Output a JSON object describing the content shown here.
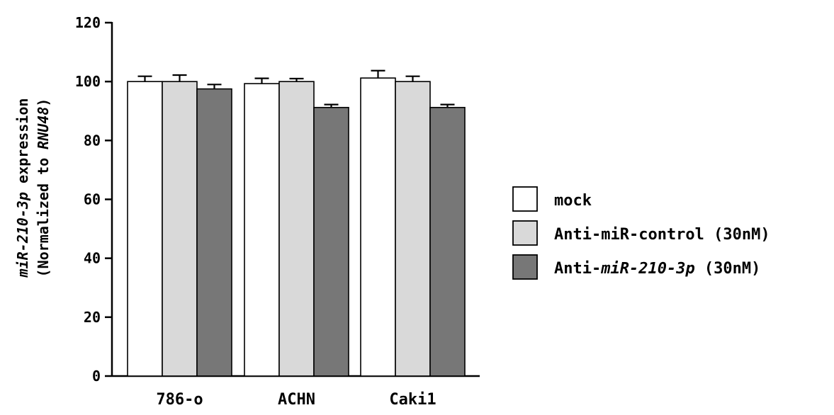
{
  "chart_data": {
    "type": "bar",
    "categories": [
      "786-o",
      "ACHN",
      "Caki1"
    ],
    "ylabel_line1_italic": "miR-210-3p",
    "ylabel_line1_rest": " expression",
    "ylabel_line2_prefix": "(Normalized to ",
    "ylabel_line2_italic": "RNU48",
    "ylabel_line2_suffix": ")",
    "ylim": [
      0,
      120
    ],
    "yticks": [
      0,
      20,
      40,
      60,
      80,
      100,
      120
    ],
    "series": [
      {
        "name": "mock",
        "color": "#ffffff",
        "values": [
          100,
          99.3,
          101.2
        ],
        "errors": [
          1.8,
          1.8,
          2.5
        ]
      },
      {
        "name": "Anti-miR-control (30nM)",
        "color": "#d9d9d9",
        "values": [
          100,
          100,
          100
        ],
        "errors": [
          2.2,
          1.0,
          1.8
        ]
      },
      {
        "name": "Anti-miR-210-3p (30nM)",
        "color": "#777777",
        "values": [
          97.5,
          91.2,
          91.2
        ],
        "errors": [
          1.5,
          1.0,
          1.0
        ]
      }
    ],
    "legend_position": "right",
    "grid": false
  },
  "legend": {
    "items": [
      {
        "plain_prefix": "mock",
        "italic": "",
        "plain_suffix": ""
      },
      {
        "plain_prefix": "Anti-miR-control (30nM)",
        "italic": "",
        "plain_suffix": ""
      },
      {
        "plain_prefix": "Anti-",
        "italic": "miR-210-3p",
        "plain_suffix": " (30nM)"
      }
    ]
  }
}
